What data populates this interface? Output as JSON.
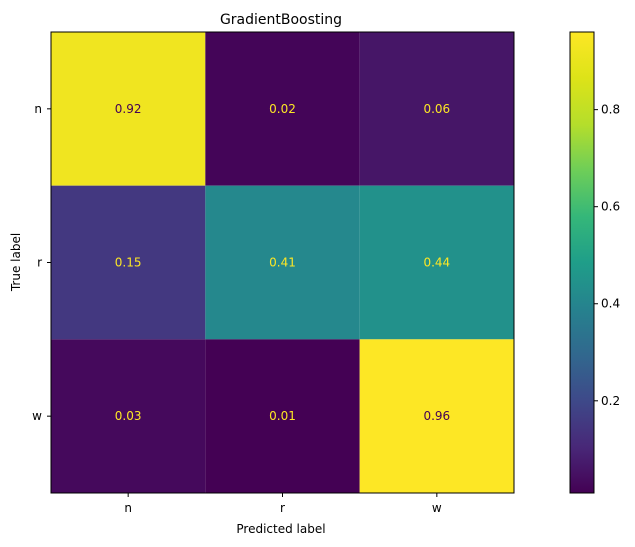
{
  "chart_data": {
    "type": "heatmap",
    "title": "GradientBoosting",
    "xlabel": "Predicted label",
    "ylabel": "True label",
    "x_categories": [
      "n",
      "r",
      "w"
    ],
    "y_categories": [
      "n",
      "r",
      "w"
    ],
    "values": [
      [
        0.92,
        0.02,
        0.06
      ],
      [
        0.15,
        0.41,
        0.44
      ],
      [
        0.03,
        0.01,
        0.96
      ]
    ],
    "cell_labels": [
      [
        "0.92",
        "0.02",
        "0.06"
      ],
      [
        "0.15",
        "0.41",
        "0.44"
      ],
      [
        "0.03",
        "0.01",
        "0.96"
      ]
    ],
    "colormap": "viridis",
    "colorbar": {
      "range": [
        0.01,
        0.96
      ],
      "ticks": [
        0.2,
        0.4,
        0.6,
        0.8
      ],
      "tick_labels": [
        "0.2",
        "0.4",
        "0.6",
        "0.8"
      ]
    },
    "grid": false
  }
}
